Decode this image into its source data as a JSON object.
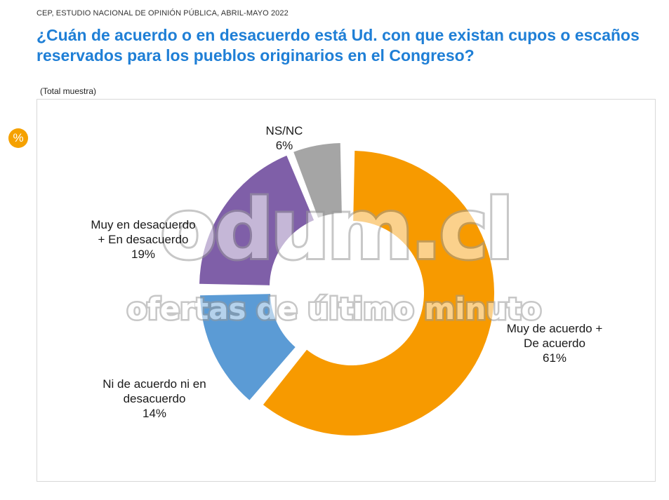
{
  "header": {
    "source": "CEP, ESTUDIO NACIONAL DE OPINIÓN PÚBLICA, ABRIL-MAYO 2022",
    "title": "¿Cuán de acuerdo o en desacuerdo está Ud. con que existan cupos o escaños reservados para los pueblos originarios en el Congreso?",
    "subtitle": "(Total muestra)",
    "unit_badge": "%"
  },
  "chart_data": {
    "type": "pie",
    "variant": "donut",
    "slices": [
      {
        "label_lines": [
          "Muy de acuerdo +",
          "De acuerdo"
        ],
        "value": 61,
        "value_label": "61%",
        "color": "#f79a00"
      },
      {
        "label_lines": [
          "Ni de acuerdo ni en",
          "desacuerdo"
        ],
        "value": 14,
        "value_label": "14%",
        "color": "#5b9bd5"
      },
      {
        "label_lines": [
          "Muy en desacuerdo",
          "+ En desacuerdo"
        ],
        "value": 19,
        "value_label": "19%",
        "color": "#7f5fa8"
      },
      {
        "label_lines": [
          "NS/NC"
        ],
        "value": 6,
        "value_label": "6%",
        "color": "#a5a5a5"
      }
    ]
  },
  "watermark": {
    "line1": "odum.cl",
    "line2": "ofertas de último minuto"
  }
}
